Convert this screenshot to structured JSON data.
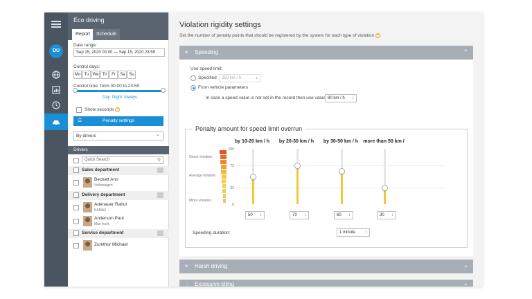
{
  "nav": {
    "avatar_initials": "DU"
  },
  "panel": {
    "title": "Eco driving",
    "tabs": [
      "Report",
      "Schedule"
    ],
    "date_range_label": "Date range:",
    "date_range_value": "Sep 15, 2020 00:00 — Sep 15, 2020 23:59",
    "control_days_label": "Control days:",
    "days": [
      "Mo",
      "Tu",
      "We",
      "Th",
      "Fr",
      "Sa",
      "Su"
    ],
    "control_time_label": "Control time: from 00:00 to 23:59",
    "time_presets": [
      "Day",
      "Night",
      "Always"
    ],
    "show_seconds_label": "Show seconds",
    "penalty_button": "Penalty settings",
    "group_by": "By drivers",
    "drivers_header": "Drivers",
    "quick_search_placeholder": "Quick Search",
    "groups": [
      {
        "name": "Sales department",
        "drivers": [
          {
            "name": "Beckett Ann",
            "vehicle": "Volkswagen"
          }
        ]
      },
      {
        "name": "Delivery department",
        "drivers": [
          {
            "name": "Adenauer Rahul",
            "vehicle": "KAMAZ"
          },
          {
            "name": "Anderson Paul",
            "vehicle": "Man truck"
          }
        ]
      },
      {
        "name": "Service department",
        "drivers": [
          {
            "name": "Zumthor Michael",
            "vehicle": ""
          }
        ]
      }
    ]
  },
  "main": {
    "title": "Violation rigidity settings",
    "subtitle": "Set the number of penalty points that should be registered by the system for each type of violation",
    "speeding": {
      "title": "Speeding",
      "use_speed_limit_label": "Use speed limit:",
      "specified_label": "Specified",
      "specified_value": "250 km / h",
      "from_vehicle_label": "From vehicle parameters",
      "fallback_label": "In case a speed value is not set in the record then use value:",
      "fallback_value": "80 km / h",
      "penalty_title": "Penalty amount for speed limit overrun",
      "scale_labels": {
        "gross": "Gross violation",
        "average": "Average violation",
        "minor": "Minor violation"
      },
      "scale_numbers": [
        "100",
        "70",
        "30",
        "0"
      ],
      "columns": [
        {
          "label": "by 10-20 km / h",
          "value": 50
        },
        {
          "label": "by 20-30 km / h",
          "value": 70
        },
        {
          "label": "by 30-50 km / h",
          "value": 60
        },
        {
          "label": "more than 50 km /",
          "value": 30
        }
      ],
      "duration_label": "Speeding duration:",
      "duration_value": "1 minute"
    },
    "harsh_driving": {
      "title": "Harsh driving"
    },
    "excessive_idling": {
      "title": "Excessive idling"
    }
  }
}
